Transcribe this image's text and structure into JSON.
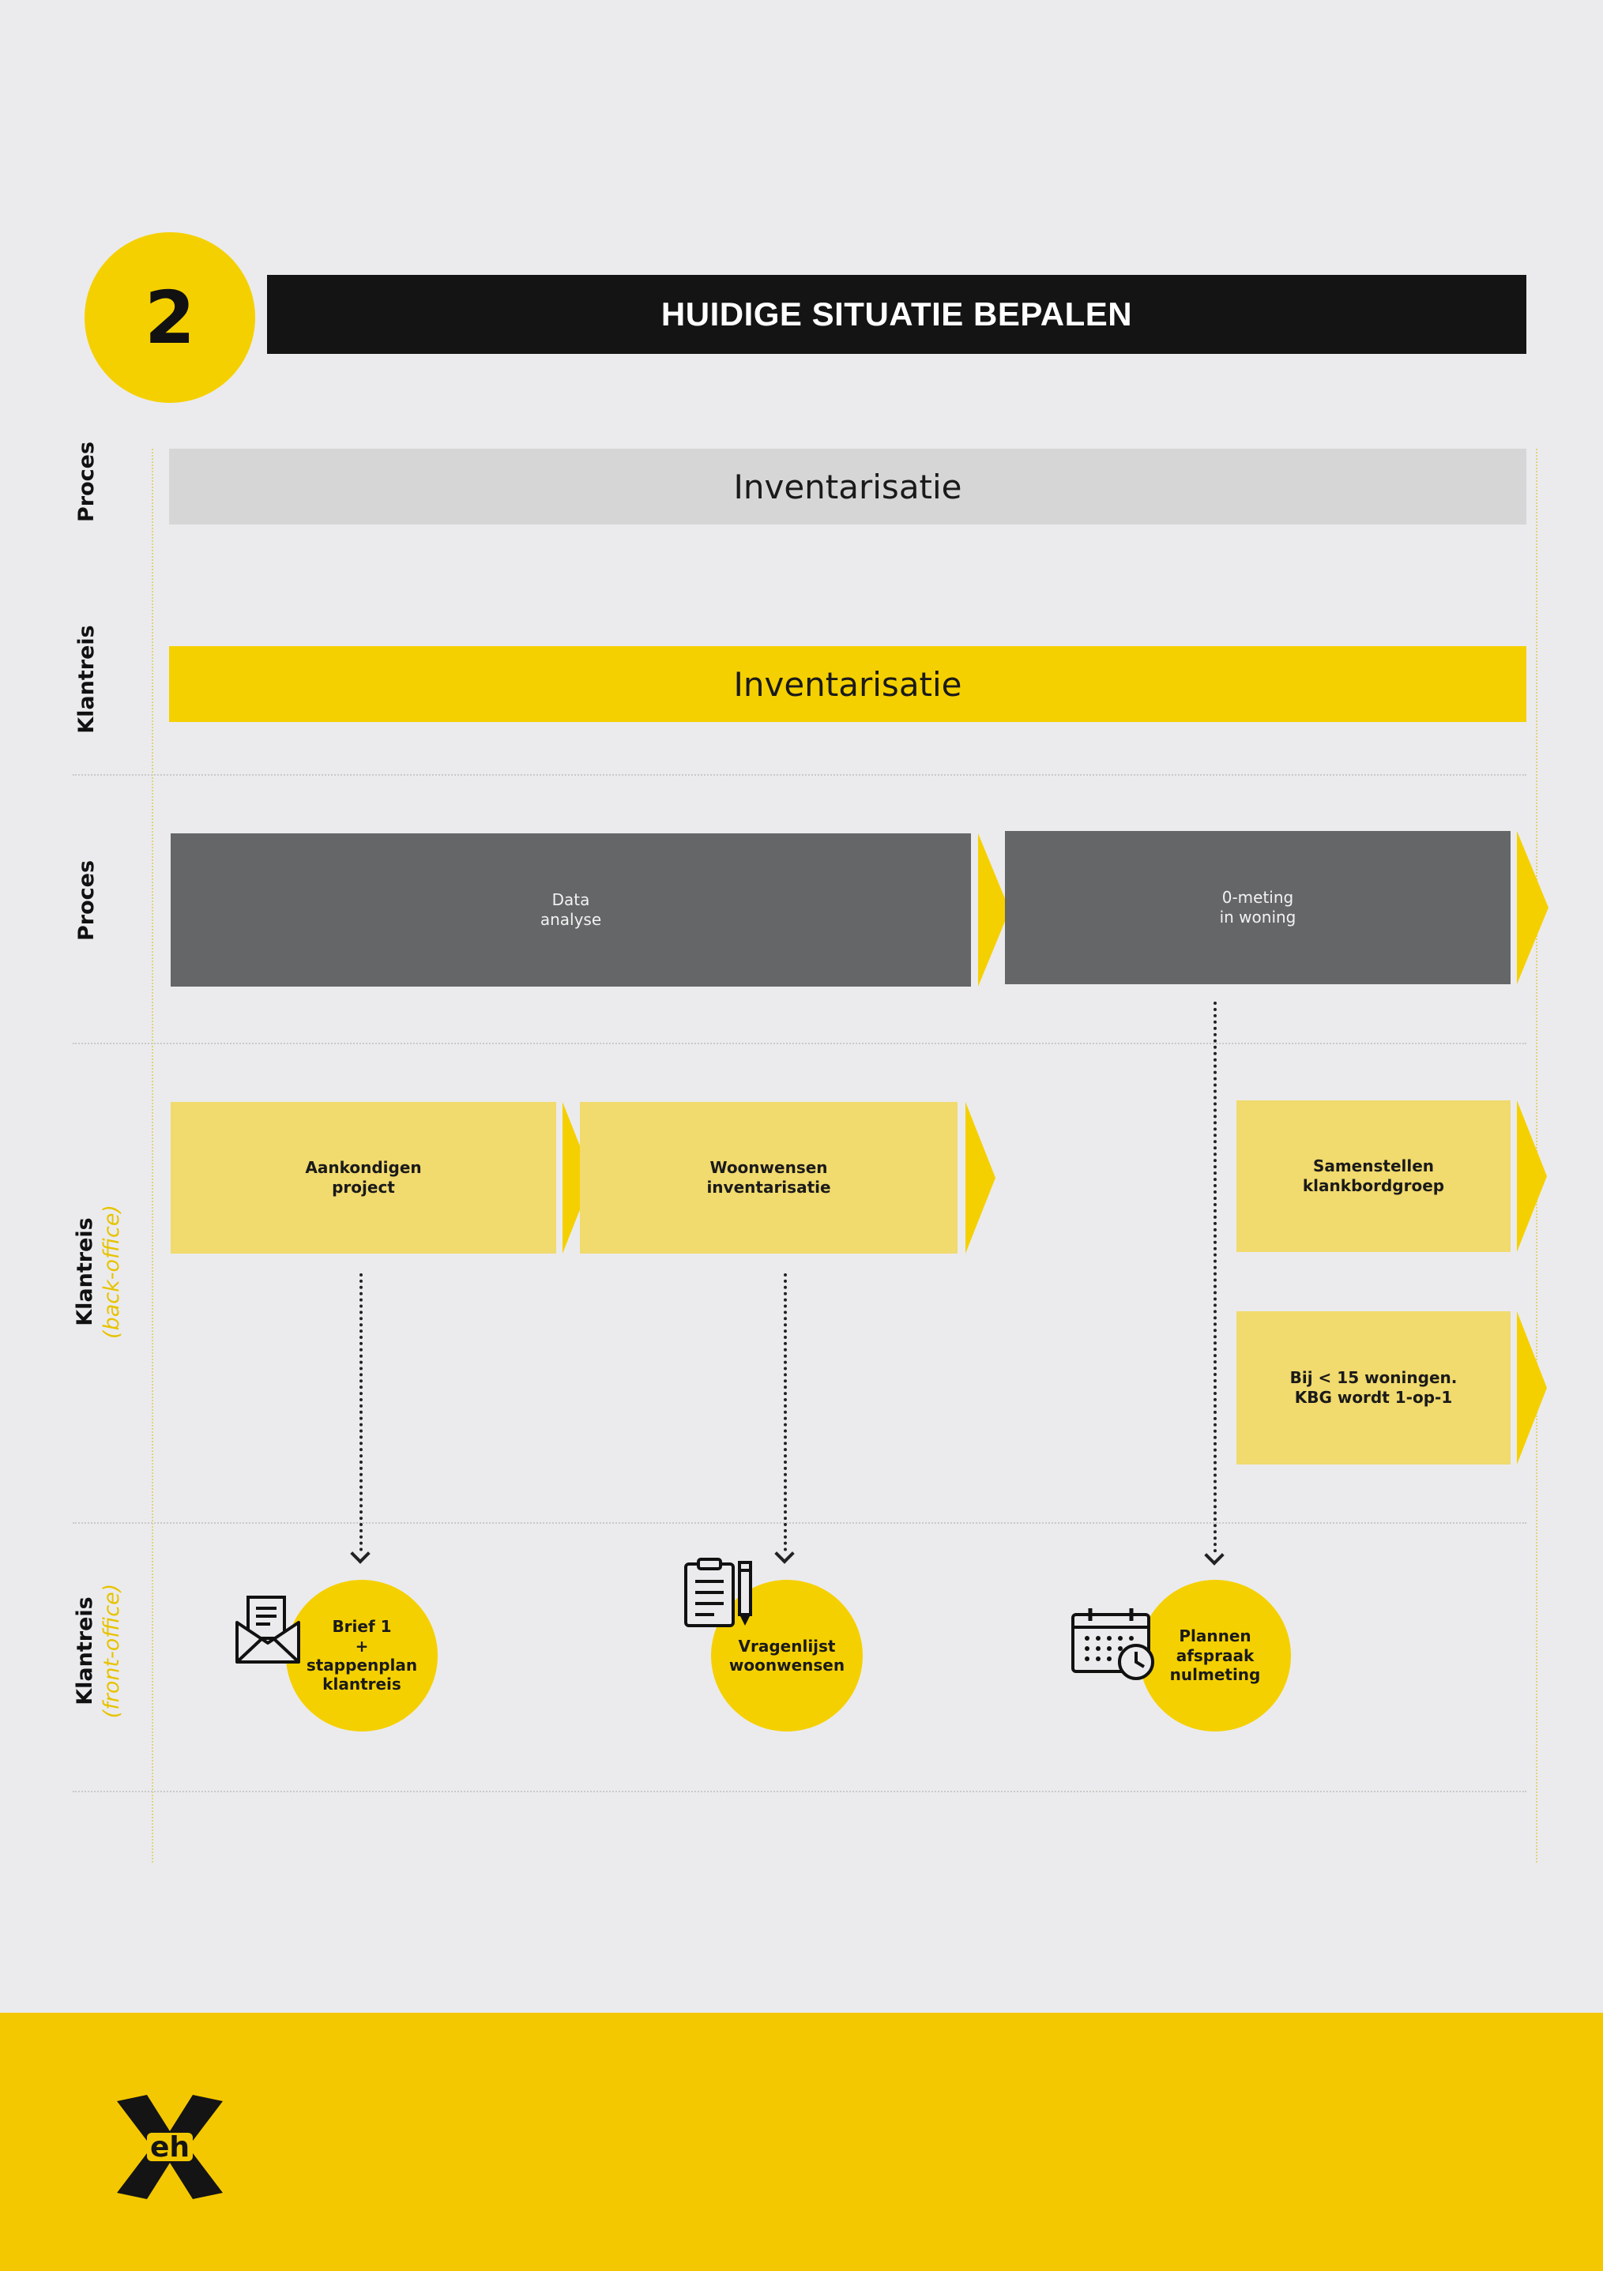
{
  "step": {
    "number": "2",
    "title": "HUIDIGE SITUATIE BEPALEN"
  },
  "lanes": {
    "proces_1": "Proces",
    "klantreis_1": "Klantreis",
    "proces_2": "Proces",
    "klantreis_back": {
      "label": "Klantreis",
      "sub": "(back-office)"
    },
    "klantreis_front": {
      "label": "Klantreis",
      "sub": "(front-office)"
    }
  },
  "phases": {
    "proces": "Inventarisatie",
    "klantreis": "Inventarisatie"
  },
  "process_blocks": [
    {
      "label": "Data\nanalyse"
    },
    {
      "label": "0-meting\nin woning"
    }
  ],
  "backoffice_blocks": [
    {
      "label": "Aankondigen\nproject"
    },
    {
      "label": "Woonwensen\ninventarisatie"
    },
    {
      "label": "Samenstellen\nklankbordgroep"
    },
    {
      "label": "Bij < 15 woningen.\nKBG wordt 1-op-1"
    }
  ],
  "touchpoints": [
    {
      "label": "Brief 1\n+\nstappenplan\nklantreis",
      "icon": "envelope-letter-icon"
    },
    {
      "label": "Vragenlijst\nwoonwensen",
      "icon": "clipboard-pencil-icon"
    },
    {
      "label": "Plannen\nafspraak\nnulmeting",
      "icon": "calendar-clock-icon"
    }
  ],
  "colors": {
    "yellow": "#f5d000",
    "light_yellow": "#f1da6e",
    "dark_gray": "#656667",
    "light_gray": "#d6d6d6",
    "black": "#141414",
    "background": "#ebebed"
  },
  "logo": {
    "text": "eh",
    "icon": "x-logo-icon"
  }
}
